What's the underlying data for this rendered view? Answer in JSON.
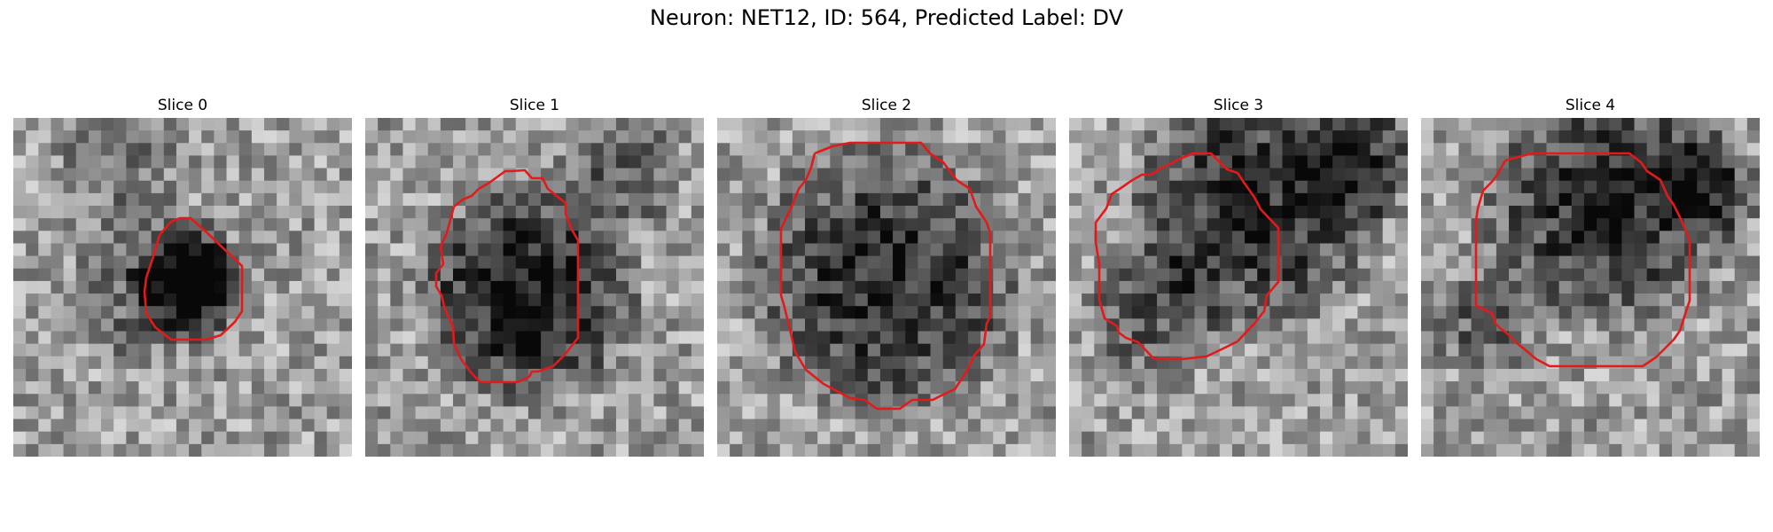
{
  "figure": {
    "title": "Neuron: NET12, ID: 564, Predicted Label: DV"
  },
  "slices": [
    {
      "label": "Slice 0"
    },
    {
      "label": "Slice 1"
    },
    {
      "label": "Slice 2"
    },
    {
      "label": "Slice 3"
    },
    {
      "label": "Slice 4"
    }
  ],
  "colors": {
    "contour": "#e31a1c",
    "colormap": "gray"
  }
}
